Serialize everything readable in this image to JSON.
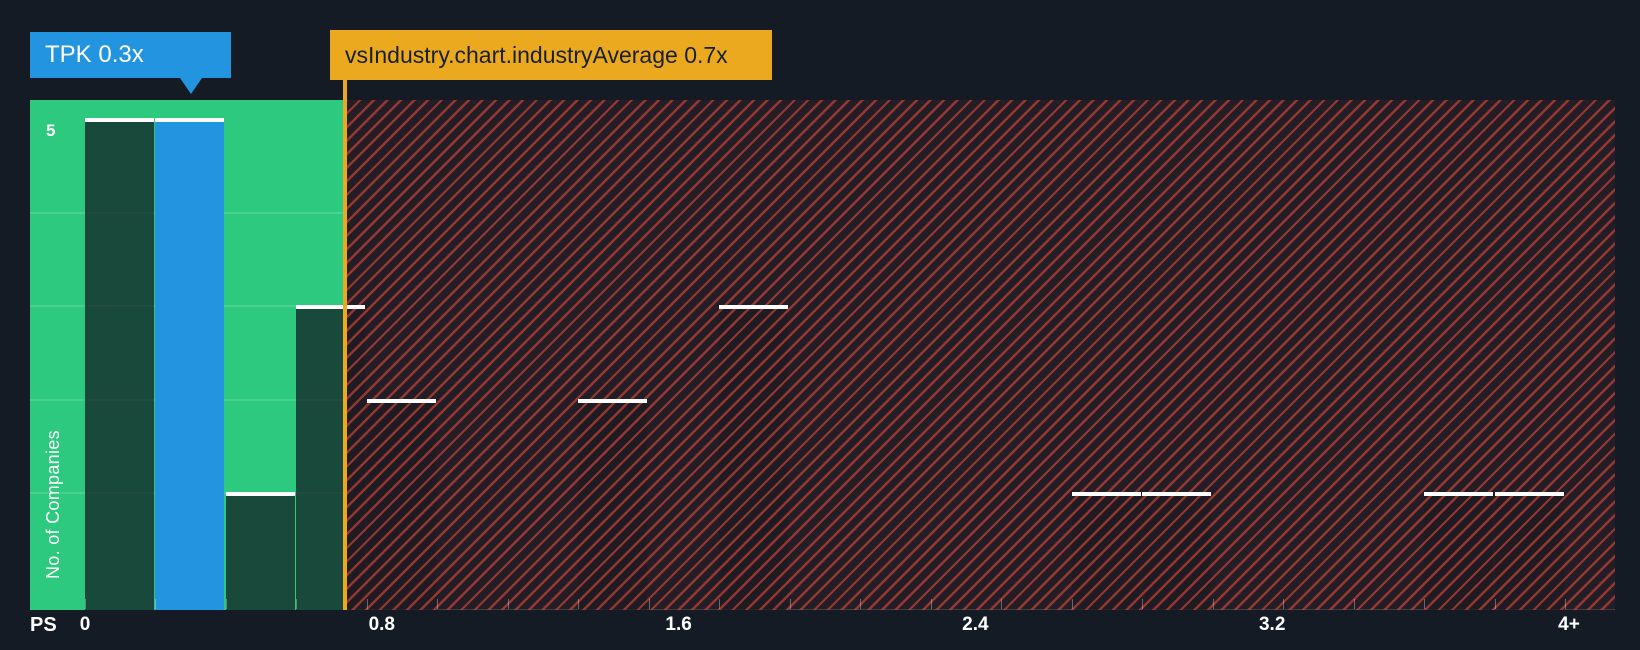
{
  "colors": {
    "background": "#151B24",
    "green_zone": "#2DC97E",
    "company_bar": "#2394DF",
    "industry_marker": "#EBA91F",
    "bar_fill": "#101820B8",
    "bar_top": "#FFFFFF",
    "hatch_stripe": "#E2483D99",
    "tooltip_text_dark": "#19202A"
  },
  "tooltips": {
    "company": "TPK 0.3x",
    "industry": "vsIndustry.chart.industryAverage 0.7x"
  },
  "axes": {
    "x_title": "PS",
    "y_title": "No. of Companies",
    "y_max_label": "5"
  },
  "chart_data": {
    "type": "bar",
    "subtype": "histogram",
    "xlabel": "PS",
    "ylabel": "No. of Companies",
    "bin_start": 0,
    "bin_width": 0.19,
    "counts": [
      5,
      5,
      1,
      3,
      2,
      0,
      0,
      2,
      0,
      3,
      0,
      0,
      0,
      0,
      1,
      1,
      0,
      0,
      0,
      1,
      1
    ],
    "company": {
      "ticker": "TPK",
      "ps_ratio": "0.3x",
      "value": 0.3,
      "bin_index": 1
    },
    "industry_average": {
      "value": 0.7,
      "label": "vsIndustry.chart.industryAverage 0.7x"
    },
    "x_ticks": [
      {
        "value": 0.0,
        "label": "0"
      },
      {
        "value": 0.8,
        "label": "0.8"
      },
      {
        "value": 1.6,
        "label": "1.6"
      },
      {
        "value": 2.4,
        "label": "2.4"
      },
      {
        "value": 3.2,
        "label": "3.2"
      },
      {
        "value": 4.0,
        "label": "4+"
      }
    ],
    "y_axis": {
      "max_shown": 5,
      "gridlines": [
        1,
        2,
        3,
        4
      ]
    },
    "zones": {
      "below_average": {
        "max": 0.7,
        "style": "green"
      },
      "above_average": {
        "min": 0.7,
        "style": "red-diagonal-hatch"
      }
    },
    "legend": "none",
    "grid": "subtle-horizontal-in-green-zone"
  }
}
